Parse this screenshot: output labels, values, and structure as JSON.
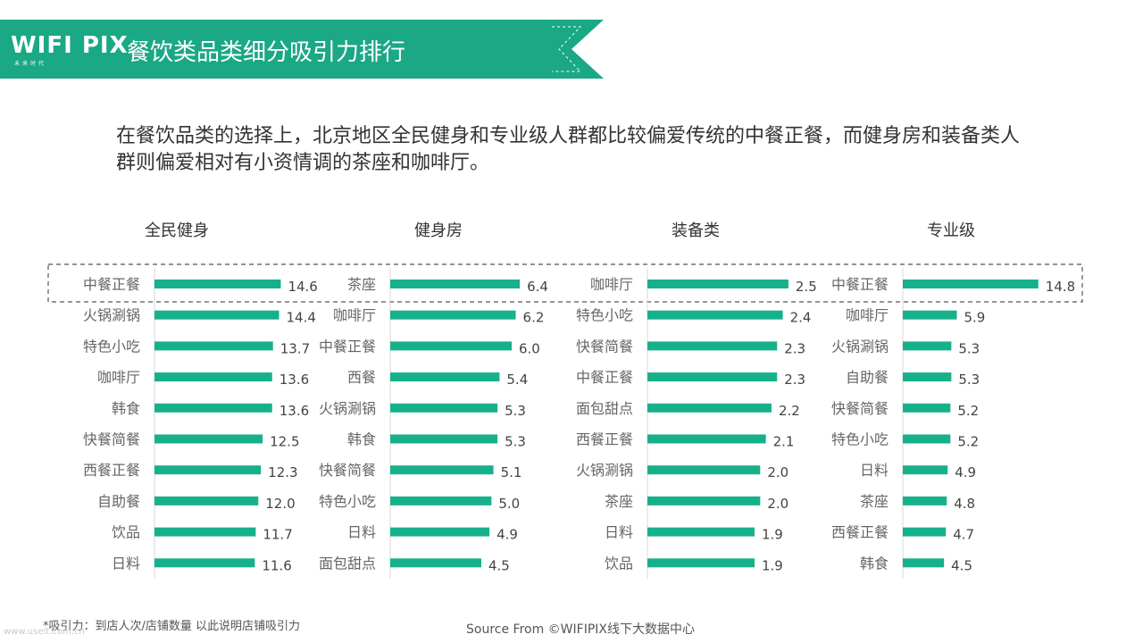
{
  "header": {
    "logo": "WIFI PIX",
    "logo_sub": "未来时代",
    "title": "餐饮类品类细分吸引力排行"
  },
  "subtitle": "在餐饮品类的选择上，北京地区全民健身和专业级人群都比较偏爱传统的中餐正餐，而健身房和装备类人群则偏爱相对有小资情调的茶座和咖啡厅。",
  "footnote": "*吸引力：到店人次/店铺数量  以此说明店铺吸引力",
  "source": "Source From ©WIFIPIX线下大数据中心",
  "watermark": "www.useit.com.cn",
  "colors": {
    "bar": "#16b18a",
    "banner": "#1aa885",
    "highlight_border": "#555555"
  },
  "chart_data": [
    {
      "type": "bar",
      "orientation": "horizontal",
      "title": "全民健身",
      "categories": [
        "中餐正餐",
        "火锅涮锅",
        "特色小吃",
        "咖啡厅",
        "韩食",
        "快餐简餐",
        "西餐正餐",
        "自助餐",
        "饮品",
        "日料"
      ],
      "values": [
        14.6,
        14.4,
        13.7,
        13.6,
        13.6,
        12.5,
        12.3,
        12.0,
        11.7,
        11.6
      ],
      "labels": [
        "14.6",
        "14.4",
        "13.7",
        "13.6",
        "13.6",
        "12.5",
        "12.3",
        "12.0",
        "11.7",
        "11.6"
      ],
      "xlim": [
        0,
        16
      ]
    },
    {
      "type": "bar",
      "orientation": "horizontal",
      "title": "健身房",
      "categories": [
        "茶座",
        "咖啡厅",
        "中餐正餐",
        "西餐",
        "火锅涮锅",
        "韩食",
        "快餐简餐",
        "特色小吃",
        "日料",
        "面包甜点"
      ],
      "values": [
        6.4,
        6.2,
        6.0,
        5.4,
        5.3,
        5.3,
        5.1,
        5.0,
        4.9,
        4.5
      ],
      "labels": [
        "6.4",
        "6.2",
        "6.0",
        "5.4",
        "5.3",
        "5.3",
        "5.1",
        "5.0",
        "4.9",
        "4.5"
      ],
      "xlim": [
        0,
        7.5
      ]
    },
    {
      "type": "bar",
      "orientation": "horizontal",
      "title": "装备类",
      "categories": [
        "咖啡厅",
        "特色小吃",
        "快餐简餐",
        "中餐正餐",
        "面包甜点",
        "西餐正餐",
        "火锅涮锅",
        "茶座",
        "日料",
        "饮品"
      ],
      "values": [
        2.5,
        2.4,
        2.3,
        2.3,
        2.2,
        2.1,
        2.0,
        2.0,
        1.9,
        1.9
      ],
      "labels": [
        "2.5",
        "2.4",
        "2.3",
        "2.3",
        "2.2",
        "2.1",
        "2.0",
        "2.0",
        "1.9",
        "1.9"
      ],
      "xlim": [
        0,
        2.85
      ]
    },
    {
      "type": "bar",
      "orientation": "horizontal",
      "title": "专业级",
      "categories": [
        "中餐正餐",
        "咖啡厅",
        "火锅涮锅",
        "自助餐",
        "快餐简餐",
        "特色小吃",
        "日料",
        "茶座",
        "西餐正餐",
        "韩食"
      ],
      "values": [
        14.8,
        5.9,
        5.3,
        5.3,
        5.2,
        5.2,
        4.9,
        4.8,
        4.7,
        4.5
      ],
      "labels": [
        "14.8",
        "5.9",
        "5.3",
        "5.3",
        "5.2",
        "5.2",
        "4.9",
        "4.8",
        "4.7",
        "4.5"
      ],
      "xlim": [
        0,
        15.6
      ]
    }
  ]
}
